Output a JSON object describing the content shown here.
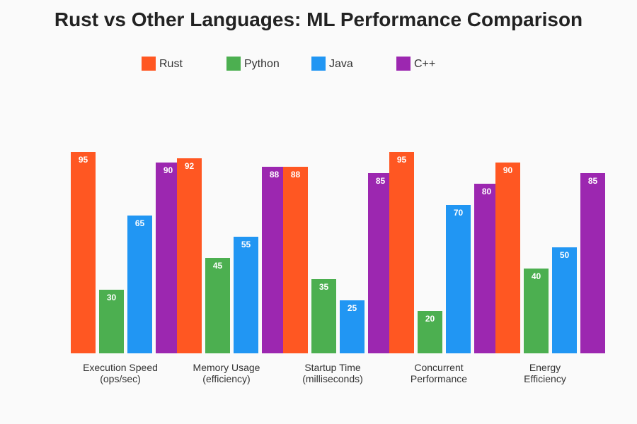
{
  "chart_data": {
    "type": "bar",
    "title": "Rust vs Other Languages: ML Performance Comparison",
    "xlabel": "",
    "ylabel": "",
    "ylim": [
      0,
      100
    ],
    "grid": false,
    "legend_position": "top",
    "categories": [
      [
        "Execution Speed",
        "(ops/sec)"
      ],
      [
        "Memory Usage",
        "(efficiency)"
      ],
      [
        "Startup Time",
        "(milliseconds)"
      ],
      [
        "Concurrent",
        "Performance"
      ],
      [
        "Energy",
        "Efficiency"
      ]
    ],
    "series": [
      {
        "name": "Rust",
        "color": "#ff5722",
        "values": [
          95,
          92,
          88,
          95,
          90
        ]
      },
      {
        "name": "Python",
        "color": "#4caf50",
        "values": [
          30,
          45,
          35,
          20,
          40
        ]
      },
      {
        "name": "Java",
        "color": "#2196f3",
        "values": [
          65,
          55,
          25,
          70,
          50
        ]
      },
      {
        "name": "C++",
        "color": "#9c27b0",
        "values": [
          90,
          88,
          85,
          80,
          85
        ]
      }
    ]
  }
}
